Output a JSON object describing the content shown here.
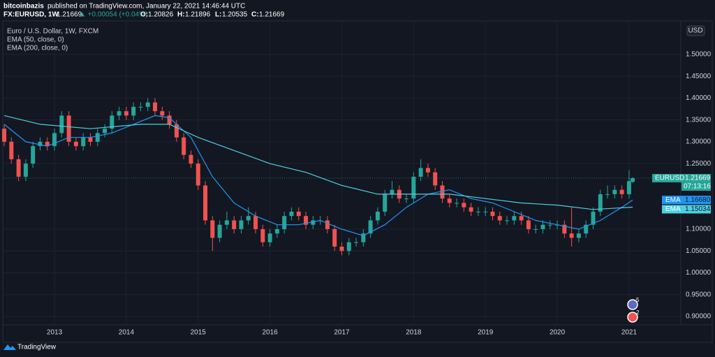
{
  "header": {
    "author": "bitcoinbazis",
    "published": "published on TradingView.com, January 22, 2021 14:46:44 UTC",
    "symbol": "FX:EURUSD, 1W",
    "change": "▲ +0.00054 (+0.04%)",
    "ohlc_labels": [
      "O:",
      "H:",
      "L:",
      "C:"
    ]
  },
  "chart_data": {
    "type": "candlestick",
    "title": "Euro / U.S. Dollar, 1W, FXCM",
    "currency": "USD",
    "symbol_label": "EURUSD",
    "countdown": "07:13:16",
    "x": [
      2012.3,
      2012.4,
      2012.5,
      2012.6,
      2012.7,
      2012.8,
      2012.9,
      2013.0,
      2013.1,
      2013.2,
      2013.3,
      2013.4,
      2013.5,
      2013.6,
      2013.7,
      2013.8,
      2013.9,
      2014.0,
      2014.1,
      2014.2,
      2014.3,
      2014.4,
      2014.5,
      2014.6,
      2014.7,
      2014.8,
      2014.9,
      2015.0,
      2015.1,
      2015.2,
      2015.3,
      2015.4,
      2015.5,
      2015.6,
      2015.7,
      2015.8,
      2015.9,
      2016.0,
      2016.1,
      2016.2,
      2016.3,
      2016.4,
      2016.5,
      2016.6,
      2016.7,
      2016.8,
      2016.9,
      2017.0,
      2017.1,
      2017.2,
      2017.3,
      2017.4,
      2017.5,
      2017.6,
      2017.7,
      2017.8,
      2017.9,
      2018.0,
      2018.1,
      2018.2,
      2018.3,
      2018.4,
      2018.5,
      2018.6,
      2018.7,
      2018.8,
      2018.9,
      2019.0,
      2019.1,
      2019.2,
      2019.3,
      2019.4,
      2019.5,
      2019.6,
      2019.7,
      2019.8,
      2019.9,
      2020.0,
      2020.1,
      2020.2,
      2020.3,
      2020.4,
      2020.5,
      2020.6,
      2020.7,
      2020.8,
      2020.9,
      2021.0,
      2021.05
    ],
    "open": [
      1.33,
      1.3,
      1.26,
      1.22,
      1.25,
      1.29,
      1.3,
      1.29,
      1.32,
      1.36,
      1.3,
      1.29,
      1.31,
      1.3,
      1.32,
      1.33,
      1.36,
      1.37,
      1.36,
      1.38,
      1.38,
      1.39,
      1.37,
      1.36,
      1.34,
      1.31,
      1.27,
      1.25,
      1.2,
      1.12,
      1.08,
      1.11,
      1.12,
      1.1,
      1.12,
      1.13,
      1.1,
      1.07,
      1.09,
      1.1,
      1.13,
      1.14,
      1.13,
      1.11,
      1.12,
      1.12,
      1.1,
      1.06,
      1.05,
      1.07,
      1.07,
      1.09,
      1.12,
      1.14,
      1.18,
      1.19,
      1.17,
      1.17,
      1.22,
      1.24,
      1.23,
      1.2,
      1.17,
      1.16,
      1.16,
      1.15,
      1.14,
      1.14,
      1.14,
      1.13,
      1.12,
      1.12,
      1.13,
      1.12,
      1.1,
      1.1,
      1.11,
      1.11,
      1.11,
      1.09,
      1.08,
      1.09,
      1.11,
      1.14,
      1.18,
      1.18,
      1.19,
      1.18,
      1.20826
    ],
    "high": [
      1.34,
      1.31,
      1.27,
      1.26,
      1.3,
      1.31,
      1.31,
      1.33,
      1.37,
      1.37,
      1.31,
      1.32,
      1.32,
      1.33,
      1.34,
      1.37,
      1.38,
      1.38,
      1.39,
      1.39,
      1.4,
      1.4,
      1.38,
      1.37,
      1.35,
      1.32,
      1.28,
      1.26,
      1.21,
      1.13,
      1.12,
      1.14,
      1.13,
      1.13,
      1.15,
      1.14,
      1.11,
      1.1,
      1.11,
      1.14,
      1.15,
      1.15,
      1.14,
      1.13,
      1.13,
      1.13,
      1.11,
      1.07,
      1.08,
      1.08,
      1.1,
      1.13,
      1.15,
      1.19,
      1.21,
      1.2,
      1.18,
      1.23,
      1.26,
      1.25,
      1.24,
      1.21,
      1.18,
      1.17,
      1.17,
      1.16,
      1.15,
      1.15,
      1.15,
      1.14,
      1.13,
      1.14,
      1.14,
      1.13,
      1.11,
      1.12,
      1.12,
      1.12,
      1.12,
      1.15,
      1.1,
      1.12,
      1.15,
      1.19,
      1.2,
      1.2,
      1.2,
      1.235,
      1.21896
    ],
    "low": [
      1.29,
      1.25,
      1.21,
      1.21,
      1.24,
      1.28,
      1.28,
      1.28,
      1.31,
      1.29,
      1.28,
      1.28,
      1.29,
      1.29,
      1.31,
      1.32,
      1.35,
      1.35,
      1.35,
      1.37,
      1.37,
      1.36,
      1.35,
      1.33,
      1.3,
      1.26,
      1.24,
      1.19,
      1.11,
      1.05,
      1.07,
      1.1,
      1.09,
      1.09,
      1.11,
      1.09,
      1.06,
      1.06,
      1.08,
      1.09,
      1.12,
      1.12,
      1.1,
      1.1,
      1.11,
      1.09,
      1.05,
      1.04,
      1.04,
      1.06,
      1.06,
      1.08,
      1.11,
      1.13,
      1.17,
      1.16,
      1.16,
      1.16,
      1.21,
      1.22,
      1.19,
      1.16,
      1.15,
      1.15,
      1.14,
      1.13,
      1.13,
      1.13,
      1.12,
      1.11,
      1.11,
      1.11,
      1.11,
      1.09,
      1.09,
      1.09,
      1.1,
      1.1,
      1.08,
      1.06,
      1.07,
      1.08,
      1.1,
      1.13,
      1.17,
      1.17,
      1.17,
      1.17,
      1.20535
    ],
    "close": [
      1.3,
      1.26,
      1.22,
      1.25,
      1.29,
      1.3,
      1.29,
      1.32,
      1.36,
      1.3,
      1.29,
      1.31,
      1.3,
      1.32,
      1.33,
      1.36,
      1.37,
      1.36,
      1.38,
      1.38,
      1.39,
      1.37,
      1.36,
      1.34,
      1.31,
      1.27,
      1.25,
      1.2,
      1.12,
      1.08,
      1.11,
      1.12,
      1.1,
      1.12,
      1.13,
      1.1,
      1.07,
      1.09,
      1.1,
      1.13,
      1.14,
      1.13,
      1.11,
      1.12,
      1.12,
      1.1,
      1.06,
      1.05,
      1.07,
      1.07,
      1.09,
      1.12,
      1.14,
      1.18,
      1.19,
      1.17,
      1.17,
      1.22,
      1.24,
      1.23,
      1.2,
      1.17,
      1.16,
      1.16,
      1.15,
      1.14,
      1.14,
      1.14,
      1.13,
      1.12,
      1.12,
      1.13,
      1.12,
      1.1,
      1.1,
      1.11,
      1.11,
      1.11,
      1.09,
      1.08,
      1.09,
      1.11,
      1.14,
      1.18,
      1.18,
      1.19,
      1.18,
      1.21,
      1.21669
    ],
    "up_color": "#26a69a",
    "down_color": "#ef5350",
    "series": [
      {
        "name": "EMA (50, close, 0)",
        "label": "EMA",
        "color": "#2196f3",
        "last_label": "1.16680",
        "x": [
          2012.3,
          2012.6,
          2012.9,
          2013.2,
          2013.5,
          2013.8,
          2014.1,
          2014.4,
          2014.6,
          2014.9,
          2015.2,
          2015.5,
          2015.8,
          2016.1,
          2016.4,
          2016.7,
          2017.0,
          2017.3,
          2017.6,
          2017.9,
          2018.2,
          2018.5,
          2018.8,
          2019.1,
          2019.4,
          2019.7,
          2020.0,
          2020.3,
          2020.6,
          2020.9,
          2021.05
        ],
        "values": [
          1.34,
          1.3,
          1.29,
          1.31,
          1.31,
          1.32,
          1.34,
          1.36,
          1.355,
          1.31,
          1.22,
          1.16,
          1.13,
          1.11,
          1.11,
          1.12,
          1.1,
          1.085,
          1.11,
          1.15,
          1.18,
          1.19,
          1.17,
          1.16,
          1.14,
          1.12,
          1.11,
          1.1,
          1.12,
          1.15,
          1.1668
        ]
      },
      {
        "name": "EMA (200, close, 0)",
        "label": "EMA",
        "color": "#4dd0e1",
        "last_label": "1.15034",
        "x": [
          2012.3,
          2012.8,
          2013.5,
          2014.2,
          2014.6,
          2015.0,
          2015.5,
          2016.0,
          2016.5,
          2017.0,
          2017.5,
          2018.0,
          2018.5,
          2019.0,
          2019.5,
          2020.0,
          2020.5,
          2021.05
        ],
        "values": [
          1.36,
          1.34,
          1.33,
          1.34,
          1.34,
          1.31,
          1.28,
          1.25,
          1.23,
          1.2,
          1.18,
          1.18,
          1.18,
          1.17,
          1.16,
          1.155,
          1.145,
          1.15034
        ]
      }
    ],
    "xlim": [
      2012.29,
      2021.72
    ],
    "xticks": [
      2013,
      2014,
      2015,
      2016,
      2017,
      2018,
      2019,
      2020,
      2021
    ],
    "ylim": [
      0.8856,
      1.5766
    ],
    "yticks": [
      {
        "value": 0.9,
        "label": "0.90000"
      },
      {
        "value": 0.95,
        "label": "0.95000"
      },
      {
        "value": 1.0,
        "label": "1.00000"
      },
      {
        "value": 1.05,
        "label": "1.05000"
      },
      {
        "value": 1.1,
        "label": "1.10000"
      },
      {
        "value": 1.25,
        "label": "1.25000"
      },
      {
        "value": 1.3,
        "label": "1.30000"
      },
      {
        "value": 1.35,
        "label": "1.35000"
      },
      {
        "value": 1.4,
        "label": "1.40000"
      },
      {
        "value": 1.45,
        "label": "1.45000"
      },
      {
        "value": 1.5,
        "label": "1.50000"
      }
    ],
    "grid": true,
    "events": [
      "5",
      "2"
    ]
  },
  "footer": {
    "brand": "TradingView"
  }
}
